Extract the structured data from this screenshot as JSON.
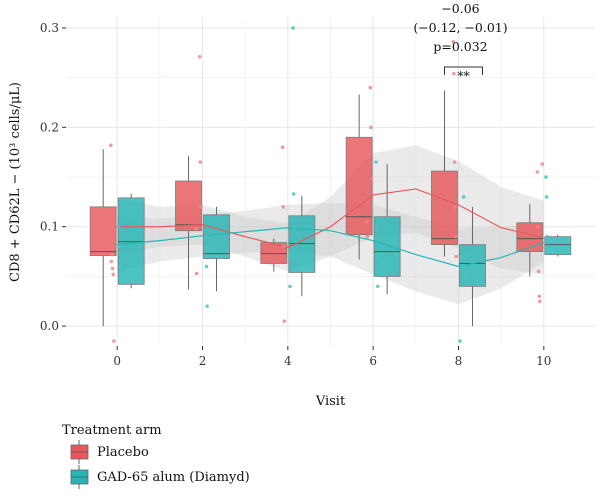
{
  "chart_data": {
    "type": "box",
    "xlabel": "Visit",
    "ylabel": "CD8 + CD62L − (10³ cells/μL)",
    "x_ticks": [
      "0",
      "2",
      "4",
      "6",
      "8",
      "10"
    ],
    "y_ticks": [
      "0.0",
      "0.1",
      "0.2",
      "0.3"
    ],
    "xlim": [
      -1.2,
      11.2
    ],
    "ylim": [
      -0.02,
      0.31
    ],
    "grid": true,
    "legend": {
      "title": "Treatment arm",
      "placement": "bottom-left",
      "entries": [
        "Placebo",
        "GAD-65 alum (Diamyd)"
      ]
    },
    "colors": {
      "placebo": "#e8575a",
      "placebo_light": "#ea8a8b",
      "diamyd": "#26b5b5",
      "diamyd_light": "#4fc2c3",
      "ribbon": "#c8c8c8",
      "whisker": "#666666",
      "grid": "#e6e6e6"
    },
    "series": [
      {
        "name": "Placebo",
        "boxes": [
          {
            "visit": 0,
            "whisker_low": 0.0,
            "q1": 0.071,
            "median": 0.075,
            "q3": 0.12,
            "whisker_high": 0.178
          },
          {
            "visit": 2,
            "whisker_low": 0.037,
            "q1": 0.096,
            "median": 0.102,
            "q3": 0.146,
            "whisker_high": 0.171
          },
          {
            "visit": 4,
            "whisker_low": 0.055,
            "q1": 0.063,
            "median": 0.073,
            "q3": 0.084,
            "whisker_high": 0.088
          },
          {
            "visit": 6,
            "whisker_low": 0.067,
            "q1": 0.092,
            "median": 0.11,
            "q3": 0.19,
            "whisker_high": 0.233
          },
          {
            "visit": 8,
            "whisker_low": 0.07,
            "q1": 0.082,
            "median": 0.088,
            "q3": 0.156,
            "whisker_high": 0.237
          },
          {
            "visit": 10,
            "whisker_low": 0.05,
            "q1": 0.075,
            "median": 0.088,
            "q3": 0.104,
            "whisker_high": 0.123
          }
        ],
        "points": [
          [
            0,
            0.182
          ],
          [
            0,
            0.065
          ],
          [
            0,
            0.072
          ],
          [
            0,
            0.058
          ],
          [
            0,
            0.052
          ],
          [
            0,
            -0.015
          ],
          [
            2,
            0.271
          ],
          [
            2,
            0.165
          ],
          [
            2,
            0.12
          ],
          [
            2,
            0.098
          ],
          [
            2,
            0.053
          ],
          [
            4,
            0.18
          ],
          [
            4,
            0.12
          ],
          [
            4,
            0.08
          ],
          [
            4,
            0.005
          ],
          [
            6,
            0.24
          ],
          [
            6,
            0.2
          ],
          [
            6,
            0.148
          ],
          [
            6,
            0.105
          ],
          [
            6,
            0.09
          ],
          [
            8,
            0.286
          ],
          [
            8,
            0.254
          ],
          [
            8,
            0.165
          ],
          [
            8,
            0.12
          ],
          [
            8,
            0.09
          ],
          [
            8,
            0.07
          ],
          [
            10,
            0.163
          ],
          [
            10,
            0.155
          ],
          [
            10,
            0.1
          ],
          [
            10,
            0.055
          ],
          [
            10,
            0.03
          ],
          [
            10,
            0.025
          ]
        ],
        "trend": [
          [
            0,
            0.1
          ],
          [
            1,
            0.1
          ],
          [
            2,
            0.102
          ],
          [
            3,
            0.09
          ],
          [
            4,
            0.079
          ],
          [
            5,
            0.1
          ],
          [
            6,
            0.132
          ],
          [
            7,
            0.138
          ],
          [
            8,
            0.122
          ],
          [
            9,
            0.099
          ],
          [
            10,
            0.089
          ]
        ],
        "ribbon_low": [
          [
            0,
            0.072
          ],
          [
            1,
            0.08
          ],
          [
            2,
            0.082
          ],
          [
            3,
            0.07
          ],
          [
            4,
            0.055
          ],
          [
            5,
            0.07
          ],
          [
            6,
            0.09
          ],
          [
            7,
            0.094
          ],
          [
            8,
            0.078
          ],
          [
            9,
            0.058
          ],
          [
            10,
            0.052
          ]
        ],
        "ribbon_high": [
          [
            0,
            0.128
          ],
          [
            1,
            0.12
          ],
          [
            2,
            0.122
          ],
          [
            3,
            0.11
          ],
          [
            4,
            0.103
          ],
          [
            5,
            0.13
          ],
          [
            6,
            0.174
          ],
          [
            7,
            0.182
          ],
          [
            8,
            0.166
          ],
          [
            9,
            0.14
          ],
          [
            10,
            0.126
          ]
        ]
      },
      {
        "name": "GAD-65 alum (Diamyd)",
        "boxes": [
          {
            "visit": 0,
            "whisker_low": 0.038,
            "q1": 0.042,
            "median": 0.085,
            "q3": 0.129,
            "whisker_high": 0.133
          },
          {
            "visit": 2,
            "whisker_low": 0.035,
            "q1": 0.068,
            "median": 0.073,
            "q3": 0.112,
            "whisker_high": 0.12
          },
          {
            "visit": 4,
            "whisker_low": 0.03,
            "q1": 0.054,
            "median": 0.083,
            "q3": 0.111,
            "whisker_high": 0.131
          },
          {
            "visit": 6,
            "whisker_low": 0.032,
            "q1": 0.05,
            "median": 0.075,
            "q3": 0.11,
            "whisker_high": 0.163
          },
          {
            "visit": 8,
            "whisker_low": 0.0,
            "q1": 0.04,
            "median": 0.063,
            "q3": 0.082,
            "whisker_high": 0.12
          },
          {
            "visit": 10,
            "whisker_low": 0.07,
            "q1": 0.072,
            "median": 0.082,
            "q3": 0.09,
            "whisker_high": 0.092
          }
        ],
        "points": [
          [
            0,
            0.1
          ],
          [
            0,
            0.08
          ],
          [
            0,
            0.06
          ],
          [
            2,
            0.09
          ],
          [
            2,
            0.06
          ],
          [
            2,
            0.02
          ],
          [
            4,
            0.3
          ],
          [
            4,
            0.133
          ],
          [
            4,
            0.1
          ],
          [
            4,
            0.07
          ],
          [
            4,
            0.04
          ],
          [
            6,
            0.165
          ],
          [
            6,
            0.1
          ],
          [
            6,
            0.07
          ],
          [
            6,
            0.04
          ],
          [
            8,
            0.13
          ],
          [
            8,
            0.06
          ],
          [
            8,
            0.05
          ],
          [
            8,
            -0.015
          ],
          [
            10,
            0.15
          ],
          [
            10,
            0.13
          ],
          [
            10,
            0.09
          ],
          [
            10,
            0.08
          ]
        ],
        "trend": [
          [
            0,
            0.082
          ],
          [
            1,
            0.086
          ],
          [
            2,
            0.091
          ],
          [
            3,
            0.095
          ],
          [
            4,
            0.099
          ],
          [
            5,
            0.096
          ],
          [
            6,
            0.086
          ],
          [
            7,
            0.072
          ],
          [
            8,
            0.06
          ],
          [
            9,
            0.069
          ],
          [
            10,
            0.084
          ]
        ],
        "ribbon_low": [
          [
            0,
            0.055
          ],
          [
            1,
            0.065
          ],
          [
            2,
            0.07
          ],
          [
            3,
            0.074
          ],
          [
            4,
            0.076
          ],
          [
            5,
            0.07
          ],
          [
            6,
            0.052
          ],
          [
            7,
            0.035
          ],
          [
            8,
            0.022
          ],
          [
            9,
            0.038
          ],
          [
            10,
            0.064
          ]
        ],
        "ribbon_high": [
          [
            0,
            0.11
          ],
          [
            1,
            0.108
          ],
          [
            2,
            0.112
          ],
          [
            3,
            0.116
          ],
          [
            4,
            0.122
          ],
          [
            5,
            0.124
          ],
          [
            6,
            0.122
          ],
          [
            7,
            0.11
          ],
          [
            8,
            0.098
          ],
          [
            9,
            0.1
          ],
          [
            10,
            0.104
          ]
        ]
      }
    ],
    "annotation": {
      "visit": 8,
      "lines": [
        "−0.06",
        "(−0.12, −0.01)",
        "p=0.032"
      ],
      "significance": "**"
    }
  }
}
